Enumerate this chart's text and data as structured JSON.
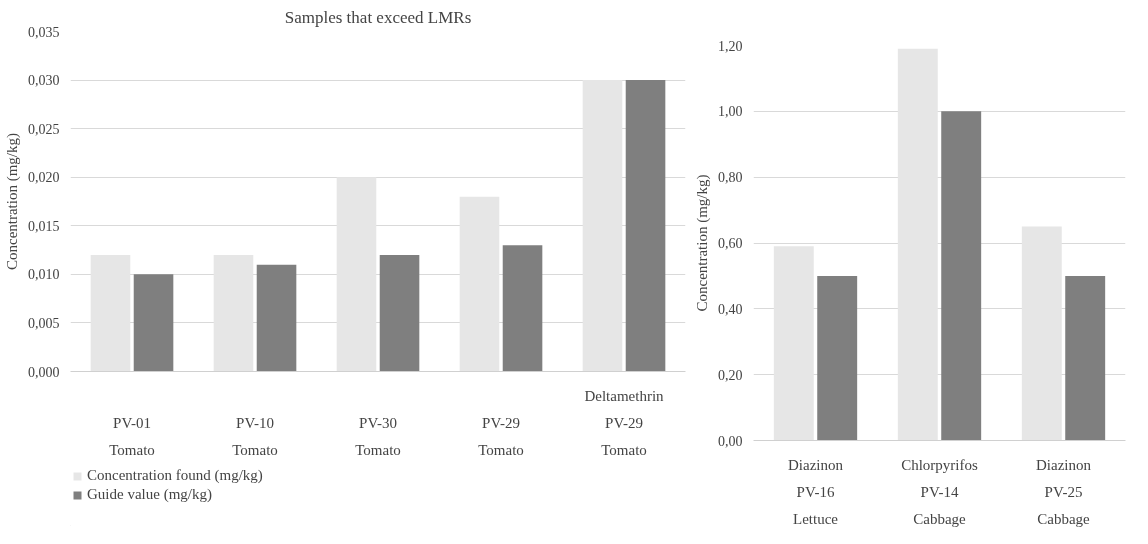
{
  "chart_data": [
    {
      "type": "bar",
      "title": "Samples that exceed LMRs",
      "ylabel": "Concentration (mg/kg)",
      "categories": [
        "PV-01\nTomato",
        "PV-10\nTomato",
        "PV-30\nTomato",
        "PV-29\nTomato",
        "Deltamethrin\nPV-29\nTomato"
      ],
      "series": [
        {
          "name": "Concentration found (mg/kg)",
          "color": "#e6e6e6",
          "values": [
            0.012,
            0.012,
            0.02,
            0.018,
            0.03
          ]
        },
        {
          "name": "Guide value (mg/kg)",
          "color": "#7f7f7f",
          "values": [
            0.01,
            0.011,
            0.012,
            0.013,
            0.03
          ]
        }
      ],
      "ylim": [
        0,
        0.035
      ],
      "yticks": [
        {
          "value": 0,
          "label": "0,000"
        },
        {
          "value": 0.005,
          "label": "0,005"
        },
        {
          "value": 0.01,
          "label": "0,010"
        },
        {
          "value": 0.015,
          "label": "0,015"
        },
        {
          "value": 0.02,
          "label": "0,020"
        },
        {
          "value": 0.025,
          "label": "0,025"
        },
        {
          "value": 0.03,
          "label": "0,030"
        },
        {
          "value": 0.035,
          "label": "0,035"
        }
      ],
      "grid": "y",
      "legend": "bottom"
    },
    {
      "type": "bar",
      "ylabel": "Concentration (mg/kg)",
      "categories": [
        "Diazinon\nPV-16\nLettuce",
        "Chlorpyrifos\nPV-14\nCabbage",
        "Diazinon\nPV-25\nCabbage"
      ],
      "series": [
        {
          "color": "#e6e6e6",
          "values": [
            0.59,
            1.19,
            0.65
          ]
        },
        {
          "color": "#7f7f7f",
          "values": [
            0.5,
            1.0,
            0.5
          ]
        }
      ],
      "ylim": [
        0,
        1.2
      ],
      "yticks": [
        {
          "value": 0,
          "label": "0,00"
        },
        {
          "value": 0.2,
          "label": "0,20"
        },
        {
          "value": 0.4,
          "label": "0,40"
        },
        {
          "value": 0.6,
          "label": "0,60"
        },
        {
          "value": 0.8,
          "label": "0,80"
        },
        {
          "value": 1.0,
          "label": "1,00"
        },
        {
          "value": 1.2,
          "label": "1,20"
        }
      ],
      "grid": "y"
    }
  ]
}
